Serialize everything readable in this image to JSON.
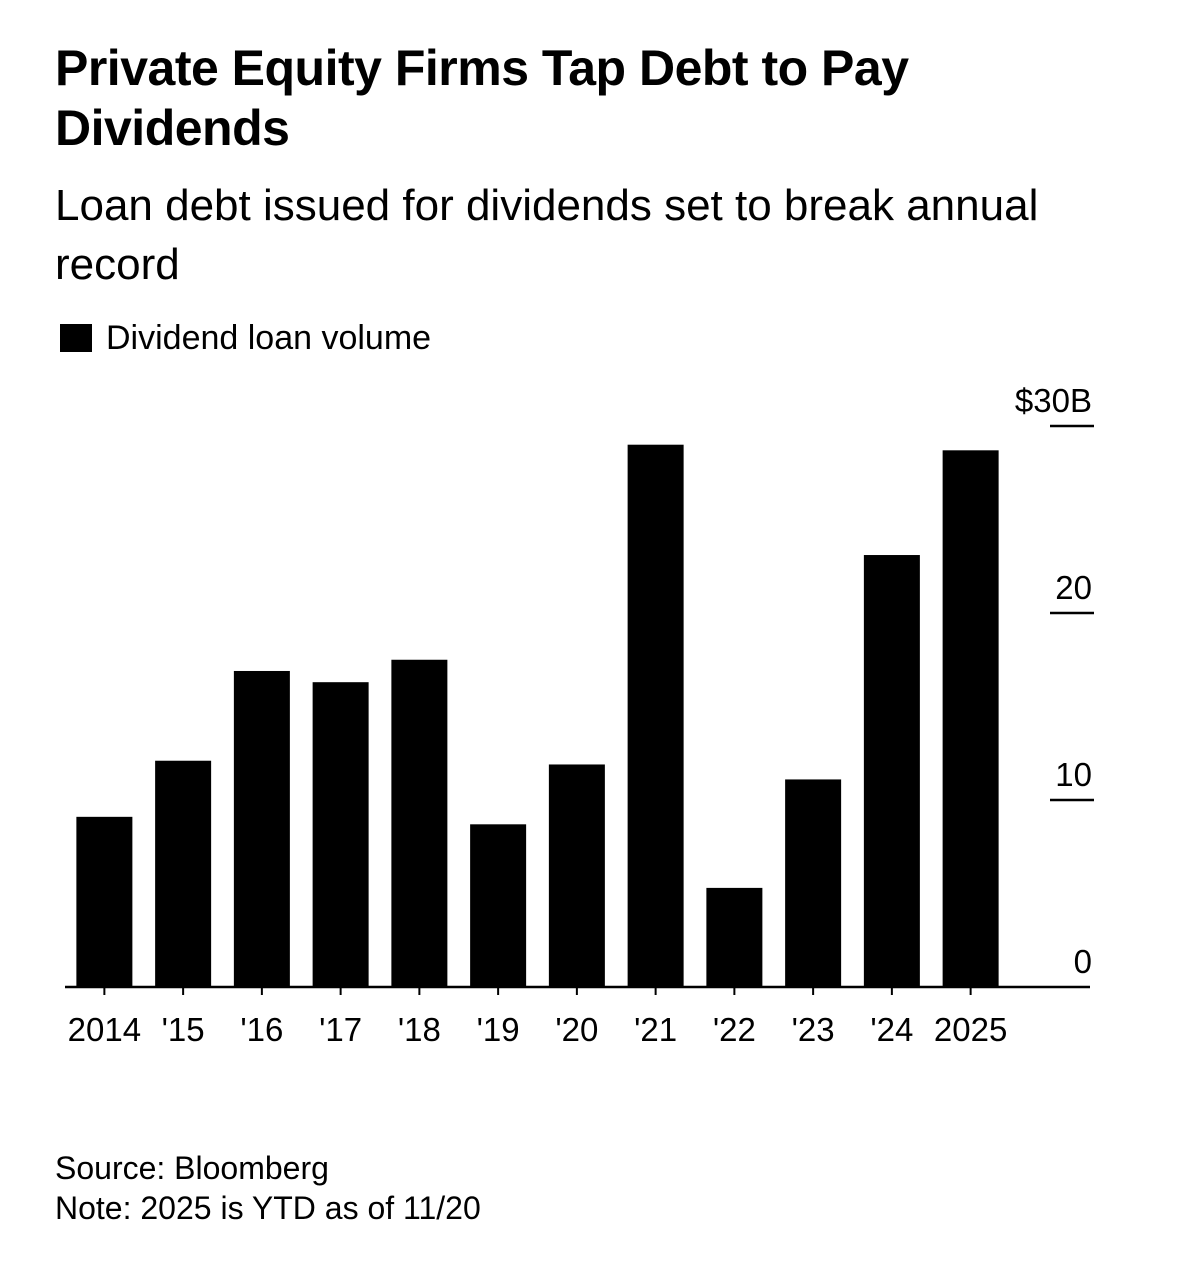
{
  "header": {
    "title": "Private Equity Firms Tap Debt to Pay Dividends",
    "subtitle": "Loan debt issued for dividends set to break annual record"
  },
  "legend": {
    "label": "Dividend loan volume",
    "color": "#000000"
  },
  "footer": {
    "source": "Source: Bloomberg",
    "note": "Note: 2025 is YTD as of 11/20"
  },
  "chart_data": {
    "type": "bar",
    "title": "Private Equity Firms Tap Debt to Pay Dividends",
    "subtitle": "Loan debt issued for dividends set to break annual record",
    "xlabel": "",
    "ylabel": "",
    "categories": [
      "2014",
      "'15",
      "'16",
      "'17",
      "'18",
      "'19",
      "'20",
      "'21",
      "'22",
      "'23",
      "'24",
      "2025"
    ],
    "series": [
      {
        "name": "Dividend loan volume",
        "color": "#000000",
        "values": [
          9.1,
          12.1,
          16.9,
          16.3,
          17.5,
          8.7,
          11.9,
          29.0,
          5.3,
          11.1,
          23.1,
          28.7
        ]
      }
    ],
    "ylim": [
      0,
      30
    ],
    "yticks": [
      0,
      10,
      20,
      30
    ],
    "ytick_labels": [
      "0",
      "10",
      "20",
      "$30B"
    ],
    "y_axis_side": "right",
    "grid": false,
    "legend_position": "top-left"
  }
}
